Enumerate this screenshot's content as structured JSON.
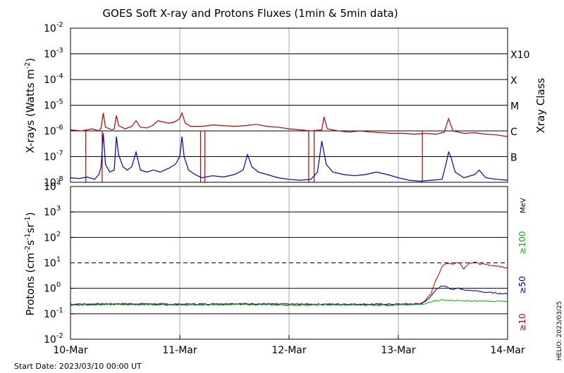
{
  "chart_data": {
    "type": "line",
    "title": "GOES Soft X-ray and Protons Fluxes   (1min & 5min data)",
    "x_ticks": [
      "10-Mar",
      "11-Mar",
      "12-Mar",
      "13-Mar",
      "14-Mar"
    ],
    "footer_left": "Start Date: 2023/03/10 00:00 UT",
    "footer_right": "HELIO: 2023/03/25",
    "xray_panel": {
      "ylabel_pre": "X-rays (Watts m",
      "ylabel_sup": "-2",
      "ylabel_post": ")",
      "yscale": "log",
      "ylim_exp": [
        -8,
        -2
      ],
      "tick_exponents": [
        "-2",
        "-3",
        "-4",
        "-5",
        "-6",
        "-7",
        "-8"
      ],
      "class_title": "Xray Class",
      "class_labels": [
        {
          "label": "X10",
          "exp": -3
        },
        {
          "label": "X",
          "exp": -4
        },
        {
          "label": "M",
          "exp": -5
        },
        {
          "label": "C",
          "exp": -6
        },
        {
          "label": "B",
          "exp": -7
        }
      ],
      "grid_exponents": [
        -3,
        -4,
        -5,
        -6,
        -7
      ],
      "series": [
        {
          "color": "#c00000",
          "points": [
            [
              0,
              1.1e-06
            ],
            [
              0.1,
              1e-06
            ],
            [
              0.2,
              1.2e-06
            ],
            [
              0.26,
              1e-06
            ],
            [
              0.28,
              1.3e-06
            ],
            [
              0.3,
              5e-06
            ],
            [
              0.32,
              1.4e-06
            ],
            [
              0.38,
              1.1e-06
            ],
            [
              0.4,
              1.2e-06
            ],
            [
              0.42,
              4e-06
            ],
            [
              0.44,
              1.6e-06
            ],
            [
              0.5,
              1.2e-06
            ],
            [
              0.56,
              1.5e-06
            ],
            [
              0.6,
              2.5e-06
            ],
            [
              0.64,
              1.4e-06
            ],
            [
              0.7,
              1.3e-06
            ],
            [
              0.75,
              1.6e-06
            ],
            [
              0.8,
              2.5e-06
            ],
            [
              0.85,
              2.2e-06
            ],
            [
              0.9,
              2e-06
            ],
            [
              0.95,
              2.2e-06
            ],
            [
              1.0,
              3e-06
            ],
            [
              1.02,
              5e-06
            ],
            [
              1.05,
              2e-06
            ],
            [
              1.1,
              1.5e-06
            ],
            [
              1.2,
              1.5e-06
            ],
            [
              1.3,
              1.7e-06
            ],
            [
              1.4,
              1.6e-06
            ],
            [
              1.5,
              1.5e-06
            ],
            [
              1.6,
              1.6e-06
            ],
            [
              1.7,
              1.8e-06
            ],
            [
              1.8,
              1.5e-06
            ],
            [
              1.9,
              1.4e-06
            ],
            [
              2.0,
              1.2e-06
            ],
            [
              2.1,
              1.1e-06
            ],
            [
              2.2,
              1e-06
            ],
            [
              2.3,
              1.1e-06
            ],
            [
              2.32,
              3.5e-06
            ],
            [
              2.35,
              1.2e-06
            ],
            [
              2.45,
              1e-06
            ],
            [
              2.55,
              9e-07
            ],
            [
              2.65,
              1e-06
            ],
            [
              2.75,
              9e-07
            ],
            [
              2.85,
              8.5e-07
            ],
            [
              2.95,
              8e-07
            ],
            [
              3.05,
              8e-07
            ],
            [
              3.15,
              7.5e-07
            ],
            [
              3.25,
              8e-07
            ],
            [
              3.35,
              7.5e-07
            ],
            [
              3.42,
              9e-07
            ],
            [
              3.46,
              3e-06
            ],
            [
              3.5,
              1e-06
            ],
            [
              3.6,
              8e-07
            ],
            [
              3.7,
              8.5e-07
            ],
            [
              3.8,
              7.5e-07
            ],
            [
              3.9,
              7e-07
            ],
            [
              4.0,
              6e-07
            ]
          ],
          "dropouts": [
            0.14,
            0.29,
            1.19,
            1.23,
            2.18,
            2.23,
            3.22
          ]
        },
        {
          "color": "#0000c0",
          "points": [
            [
              0,
              1.5e-08
            ],
            [
              0.08,
              1.4e-08
            ],
            [
              0.15,
              1.6e-08
            ],
            [
              0.22,
              1.3e-08
            ],
            [
              0.26,
              2e-08
            ],
            [
              0.28,
              4e-08
            ],
            [
              0.3,
              8e-07
            ],
            [
              0.32,
              5e-08
            ],
            [
              0.36,
              2.5e-08
            ],
            [
              0.4,
              3e-08
            ],
            [
              0.42,
              6e-07
            ],
            [
              0.44,
              1.2e-07
            ],
            [
              0.48,
              4e-08
            ],
            [
              0.52,
              3e-08
            ],
            [
              0.56,
              4e-08
            ],
            [
              0.6,
              1.5e-07
            ],
            [
              0.64,
              3e-08
            ],
            [
              0.7,
              2.5e-08
            ],
            [
              0.76,
              3e-08
            ],
            [
              0.82,
              2.5e-08
            ],
            [
              0.9,
              3.5e-08
            ],
            [
              0.96,
              5e-08
            ],
            [
              1.0,
              1e-07
            ],
            [
              1.02,
              6e-07
            ],
            [
              1.04,
              1e-07
            ],
            [
              1.08,
              3e-08
            ],
            [
              1.14,
              2e-08
            ],
            [
              1.2,
              1.5e-08
            ],
            [
              1.3,
              1.8e-08
            ],
            [
              1.4,
              1.6e-08
            ],
            [
              1.5,
              2e-08
            ],
            [
              1.58,
              3e-08
            ],
            [
              1.62,
              1.2e-07
            ],
            [
              1.66,
              4e-08
            ],
            [
              1.72,
              2.5e-08
            ],
            [
              1.8,
              2e-08
            ],
            [
              1.9,
              1.5e-08
            ],
            [
              2.0,
              1.3e-08
            ],
            [
              2.1,
              1.2e-08
            ],
            [
              2.2,
              1.3e-08
            ],
            [
              2.26,
              2.5e-08
            ],
            [
              2.3,
              4e-07
            ],
            [
              2.34,
              5e-08
            ],
            [
              2.4,
              2.5e-08
            ],
            [
              2.5,
              2e-08
            ],
            [
              2.6,
              1.8e-08
            ],
            [
              2.7,
              2e-08
            ],
            [
              2.8,
              2.5e-08
            ],
            [
              2.9,
              2e-08
            ],
            [
              3.0,
              1.5e-08
            ],
            [
              3.1,
              1.2e-08
            ],
            [
              3.2,
              1.1e-08
            ],
            [
              3.3,
              1.2e-08
            ],
            [
              3.4,
              1.3e-08
            ],
            [
              3.44,
              6e-08
            ],
            [
              3.46,
              1.5e-07
            ],
            [
              3.48,
              1e-07
            ],
            [
              3.52,
              2.5e-08
            ],
            [
              3.6,
              1.5e-08
            ],
            [
              3.7,
              2e-08
            ],
            [
              3.74,
              3e-08
            ],
            [
              3.8,
              1.5e-08
            ],
            [
              3.9,
              1.3e-08
            ],
            [
              4.0,
              1.2e-08
            ]
          ]
        }
      ]
    },
    "proton_panel": {
      "ylabel_pre": "Protons (cm",
      "ylabel_sup1": "-2",
      "ylabel_mid1": "s",
      "ylabel_sup2": "-1",
      "ylabel_mid2": "sr",
      "ylabel_sup3": "-1",
      "ylabel_post": ")",
      "yscale": "log",
      "ylim_exp": [
        -2,
        4
      ],
      "tick_labels": [
        {
          "base": "10",
          "sup": "4",
          "exp": 4
        },
        {
          "base": "10",
          "sup": "3",
          "exp": 3
        },
        {
          "base": "10",
          "sup": "2",
          "exp": 2
        },
        {
          "base": "10",
          "sup": "1",
          "exp": 1
        },
        {
          "base": "10",
          "sup": "0",
          "exp": 0
        },
        {
          "base": "10",
          "sup": "-1",
          "exp": -1
        },
        {
          "base": "10",
          "sup": "-2",
          "exp": -2
        }
      ],
      "grid_exponents": [
        3,
        2,
        0,
        -1
      ],
      "threshold_exp": 1,
      "unit_label": "MeV",
      "energy_labels": [
        {
          "label": "≥100",
          "color": "#00bb00"
        },
        {
          "label": "≥50",
          "color": "#0000c0"
        },
        {
          "label": "≥10",
          "color": "#c00000"
        }
      ],
      "series": [
        {
          "label": "≥10",
          "color": "#c00000",
          "points": [
            [
              0,
              0.24
            ],
            [
              0.5,
              0.25
            ],
            [
              1.0,
              0.24
            ],
            [
              1.5,
              0.25
            ],
            [
              2.0,
              0.24
            ],
            [
              2.5,
              0.24
            ],
            [
              3.0,
              0.24
            ],
            [
              3.2,
              0.25
            ],
            [
              3.25,
              0.35
            ],
            [
              3.3,
              0.6
            ],
            [
              3.33,
              1.5
            ],
            [
              3.36,
              3.0
            ],
            [
              3.4,
              7.0
            ],
            [
              3.45,
              10.0
            ],
            [
              3.5,
              9.0
            ],
            [
              3.55,
              10.5
            ],
            [
              3.6,
              6.0
            ],
            [
              3.65,
              10.0
            ],
            [
              3.7,
              10.5
            ],
            [
              3.75,
              9.0
            ],
            [
              3.8,
              8.5
            ],
            [
              3.9,
              7.5
            ],
            [
              4.0,
              6.5
            ]
          ]
        },
        {
          "label": "≥50",
          "color": "#0000c0",
          "points": [
            [
              0,
              0.23
            ],
            [
              0.5,
              0.24
            ],
            [
              1.0,
              0.23
            ],
            [
              1.5,
              0.24
            ],
            [
              2.0,
              0.23
            ],
            [
              2.5,
              0.23
            ],
            [
              3.0,
              0.23
            ],
            [
              3.2,
              0.24
            ],
            [
              3.25,
              0.3
            ],
            [
              3.3,
              0.5
            ],
            [
              3.35,
              0.9
            ],
            [
              3.4,
              1.3
            ],
            [
              3.45,
              1.1
            ],
            [
              3.5,
              0.9
            ],
            [
              3.55,
              1.0
            ],
            [
              3.6,
              0.85
            ],
            [
              3.7,
              0.8
            ],
            [
              3.8,
              0.7
            ],
            [
              3.9,
              0.65
            ],
            [
              4.0,
              0.6
            ]
          ]
        },
        {
          "label": "≥100",
          "color": "#00bb00",
          "points": [
            [
              0,
              0.22
            ],
            [
              0.5,
              0.23
            ],
            [
              1.0,
              0.22
            ],
            [
              1.5,
              0.23
            ],
            [
              2.0,
              0.22
            ],
            [
              2.5,
              0.22
            ],
            [
              3.0,
              0.22
            ],
            [
              3.2,
              0.23
            ],
            [
              3.25,
              0.26
            ],
            [
              3.3,
              0.3
            ],
            [
              3.4,
              0.35
            ],
            [
              3.5,
              0.33
            ],
            [
              3.6,
              0.32
            ],
            [
              3.7,
              0.31
            ],
            [
              3.8,
              0.32
            ],
            [
              3.9,
              0.31
            ],
            [
              4.0,
              0.3
            ]
          ]
        }
      ]
    }
  }
}
